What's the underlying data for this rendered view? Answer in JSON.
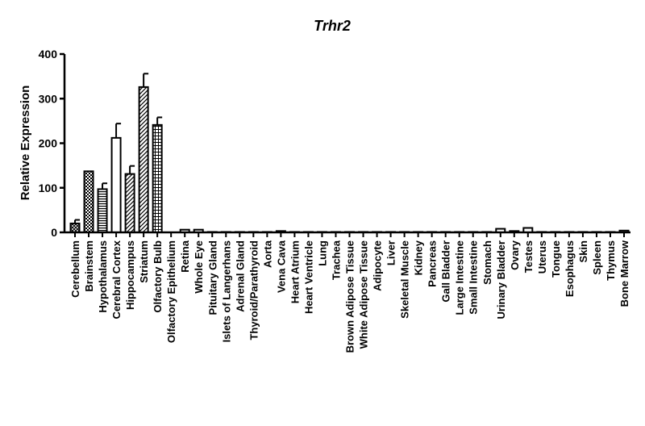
{
  "chart_data": {
    "type": "bar",
    "title": "Trhr2",
    "xlabel": "",
    "ylabel": "Relative Expression",
    "ylim": [
      0,
      400
    ],
    "yticks": [
      "0",
      "100",
      "200",
      "300",
      "400"
    ],
    "grid": false,
    "legend": "none",
    "categories": [
      "Cerebellum",
      "Brainstem",
      "Hypothalamus",
      "Cerebral Cortex",
      "Hippocampus",
      "Striatum",
      "Olfactory Bulb",
      "Olfactory Epithelium",
      "Retina",
      "Whole Eye",
      "Pituitary Gland",
      "Islets of Langerhans",
      "Adrenal Gland",
      "Thyroid/Parathyroid",
      "Aorta",
      "Vena Cava",
      "Heart Atrium",
      "Heart Ventricle",
      "Lung",
      "Trachea",
      "Brown Adipose Tissue",
      "White Adipose Tissue",
      "Adipocyte",
      "Liver",
      "Skeletal Muscle",
      "Kidney",
      "Pancreas",
      "Gall Bladder",
      "Large Intestine",
      "Small Intestine",
      "Stomach",
      "Urinary Bladder",
      "Ovary",
      "Testes",
      "Uterus",
      "Tongue",
      "Esophagus",
      "Skin",
      "Spleen",
      "Thymus",
      "Bone Marrow"
    ],
    "values": [
      20,
      137,
      97,
      212,
      131,
      326,
      241,
      0,
      6,
      6,
      1,
      1,
      1,
      1,
      1,
      3,
      1,
      1,
      1,
      1,
      1,
      1,
      1,
      1,
      1,
      1,
      1,
      1,
      1,
      1,
      1,
      8,
      3,
      10,
      1,
      1,
      1,
      1,
      1,
      1,
      4
    ],
    "errors": [
      8,
      0,
      13,
      32,
      18,
      30,
      17,
      0,
      0,
      0,
      0,
      0,
      0,
      0,
      0,
      0,
      0,
      0,
      0,
      0,
      0,
      0,
      0,
      0,
      0,
      0,
      0,
      0,
      0,
      0,
      0,
      0,
      0,
      0,
      0,
      0,
      0,
      0,
      0,
      0,
      0
    ],
    "patterns": [
      "crosshatch",
      "checker",
      "hstripes",
      "plain",
      "diagonal",
      "diagonal",
      "grid",
      "plain",
      "plain",
      "plain",
      "plain",
      "plain",
      "plain",
      "plain",
      "plain",
      "plain",
      "plain",
      "plain",
      "plain",
      "plain",
      "plain",
      "plain",
      "plain",
      "plain",
      "plain",
      "plain",
      "plain",
      "plain",
      "plain",
      "plain",
      "plain",
      "plain",
      "plain",
      "plain",
      "plain",
      "plain",
      "plain",
      "plain",
      "plain",
      "plain",
      "plain"
    ],
    "bar_color": "#000000",
    "background": "#ffffff"
  }
}
